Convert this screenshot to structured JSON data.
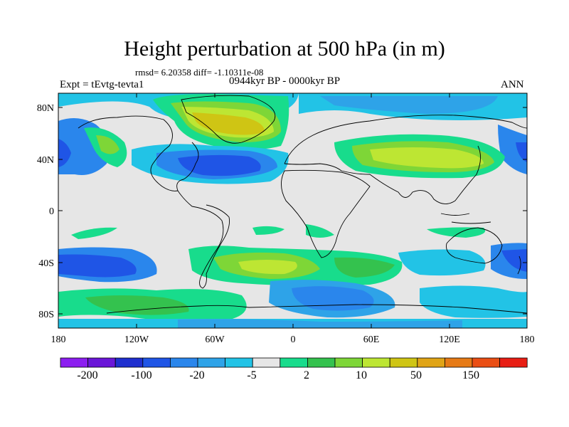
{
  "plot": {
    "title": "Height perturbation at 500 hPa (in m)",
    "stats": "rmsd= 6.20358 diff= -1.10311e-08",
    "period": "0944kyr BP - 0000kyr BP",
    "experiment": "Expt = tEvtg-tevta1",
    "season": "ANN"
  },
  "axes": {
    "lat_ticks": [
      "80N",
      "40N",
      "0",
      "40S",
      "80S"
    ],
    "lon_ticks": [
      "180",
      "120W",
      "60W",
      "0",
      "60E",
      "120E",
      "180"
    ]
  },
  "colorbar": {
    "colors": [
      "#8c1ef0",
      "#6a16d8",
      "#1f2fcf",
      "#1f55e6",
      "#2a86ec",
      "#2ea3e8",
      "#22c3e6",
      "#e6e6e6",
      "#18dc8c",
      "#34c24e",
      "#7ed637",
      "#bde633",
      "#cfc514",
      "#e0a416",
      "#e67a16",
      "#ea4e14",
      "#e81e14"
    ],
    "labels": [
      "-200",
      "-100",
      "-20",
      "-5",
      "2",
      "10",
      "50",
      "150"
    ]
  },
  "field_colors": {
    "background": "#e6e6e6",
    "coast": "#000000"
  }
}
